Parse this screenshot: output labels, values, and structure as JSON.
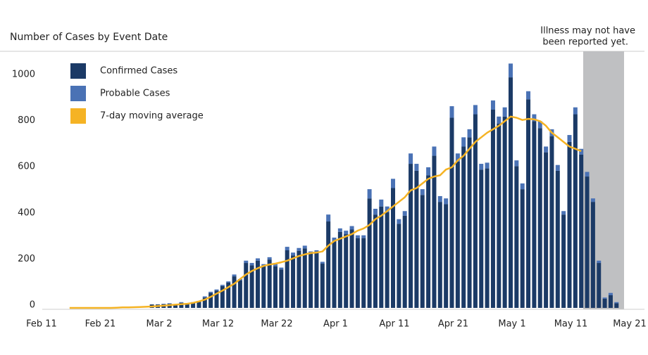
{
  "chart_data": {
    "type": "bar",
    "title": "Number of Cases by Event Date",
    "annotation": [
      "Illness may not have",
      "been reported yet."
    ],
    "categories": [
      "Feb 11",
      null,
      null,
      null,
      null,
      null,
      null,
      null,
      null,
      null,
      "Feb 21",
      null,
      null,
      null,
      null,
      null,
      null,
      null,
      null,
      null,
      "Mar 2",
      null,
      null,
      null,
      null,
      null,
      null,
      null,
      null,
      null,
      "Mar 12",
      null,
      null,
      null,
      null,
      null,
      null,
      null,
      null,
      null,
      "Mar 22",
      null,
      null,
      null,
      null,
      null,
      null,
      null,
      null,
      null,
      "Apr 1",
      null,
      null,
      null,
      null,
      null,
      null,
      null,
      null,
      null,
      "Apr 11",
      null,
      null,
      null,
      null,
      null,
      null,
      null,
      null,
      null,
      "Apr 21",
      null,
      null,
      null,
      null,
      null,
      null,
      null,
      null,
      null,
      "May 1",
      null,
      null,
      null,
      null,
      null,
      null,
      null,
      null,
      null,
      "May 11",
      null,
      null,
      null,
      null,
      null,
      null,
      null,
      null,
      null,
      "May 21"
    ],
    "series": [
      {
        "name": "Confirmed Cases",
        "color": "#1b3a66",
        "type": "bar",
        "values": [
          0,
          0,
          0,
          0,
          0,
          0,
          0,
          0,
          0,
          0,
          0,
          0,
          0,
          0,
          0,
          0,
          0,
          0,
          0,
          15,
          15,
          16,
          18,
          15,
          22,
          18,
          22,
          27,
          45,
          65,
          75,
          95,
          110,
          137,
          120,
          195,
          185,
          205,
          180,
          210,
          180,
          167,
          250,
          228,
          248,
          258,
          235,
          240,
          192,
          375,
          290,
          330,
          320,
          340,
          303,
          303,
          475,
          405,
          440,
          415,
          520,
          365,
          400,
          625,
          595,
          490,
          575,
          660,
          460,
          450,
          825,
          635,
          700,
          740,
          840,
          600,
          605,
          860,
          800,
          830,
          1000,
          615,
          515,
          905,
          810,
          780,
          675,
          745,
          595,
          405,
          720,
          840,
          665,
          570,
          460,
          195,
          40,
          55,
          20,
          0,
          0
        ]
      },
      {
        "name": "Probable Cases",
        "color": "#4a72b5",
        "type": "bar",
        "values": [
          0,
          0,
          0,
          0,
          0,
          0,
          0,
          0,
          0,
          0,
          0,
          0,
          0,
          0,
          0,
          0,
          0,
          0,
          0,
          0,
          0,
          2,
          2,
          0,
          3,
          2,
          3,
          3,
          5,
          5,
          5,
          5,
          5,
          8,
          5,
          10,
          10,
          10,
          10,
          10,
          10,
          8,
          15,
          12,
          12,
          12,
          10,
          10,
          8,
          30,
          15,
          15,
          15,
          15,
          12,
          12,
          40,
          25,
          30,
          25,
          40,
          20,
          20,
          45,
          30,
          25,
          35,
          40,
          25,
          25,
          50,
          35,
          40,
          35,
          40,
          25,
          25,
          40,
          30,
          40,
          60,
          25,
          25,
          35,
          30,
          30,
          25,
          30,
          25,
          15,
          30,
          30,
          25,
          20,
          15,
          10,
          5,
          10,
          5,
          0,
          0
        ]
      },
      {
        "name": "7-day moving average",
        "color": "#f5b324",
        "type": "line",
        "values": [
          null,
          null,
          null,
          null,
          null,
          0,
          0,
          0,
          0,
          0,
          0,
          0,
          0,
          1,
          2,
          2,
          3,
          4,
          5,
          6,
          8,
          10,
          12,
          14,
          16,
          18,
          22,
          28,
          36,
          48,
          62,
          75,
          90,
          105,
          125,
          145,
          160,
          172,
          182,
          188,
          192,
          198,
          205,
          215,
          225,
          232,
          238,
          240,
          245,
          270,
          290,
          300,
          310,
          320,
          335,
          345,
          360,
          385,
          400,
          420,
          440,
          460,
          480,
          510,
          520,
          540,
          560,
          570,
          575,
          600,
          610,
          640,
          660,
          690,
          720,
          740,
          760,
          775,
          790,
          810,
          830,
          825,
          815,
          820,
          818,
          810,
          790,
          760,
          740,
          720,
          700,
          690,
          680,
          null,
          null,
          null,
          null,
          null,
          null,
          null,
          null
        ]
      }
    ],
    "ylim": [
      0,
      1110
    ],
    "yticks": [
      0,
      200,
      400,
      600,
      800,
      1000
    ],
    "grid": false,
    "legend": "top-left"
  }
}
